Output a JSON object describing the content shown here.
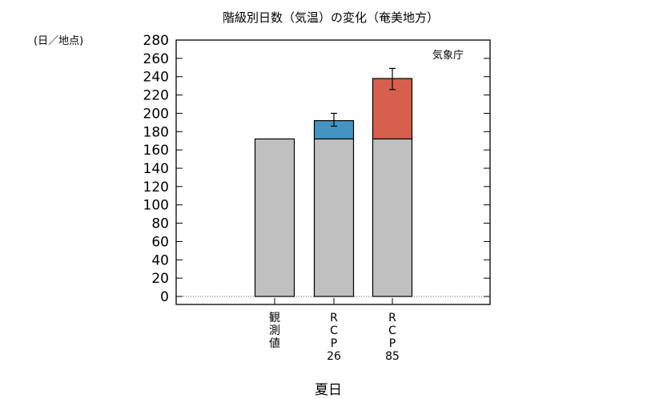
{
  "chart_data": {
    "type": "bar",
    "title": "階級別日数（気温）の変化（奄美地方）",
    "ylabel": "(日／地点)",
    "xlabel": "夏日",
    "credit": "気象庁",
    "ylim": [
      0,
      280
    ],
    "yticks": [
      0,
      20,
      40,
      60,
      80,
      100,
      120,
      140,
      160,
      180,
      200,
      220,
      240,
      260,
      280
    ],
    "categories": [
      [
        "観",
        "測",
        "値"
      ],
      [
        "R",
        "C",
        "P",
        "26"
      ],
      [
        "R",
        "C",
        "P",
        "85"
      ]
    ],
    "series": [
      {
        "values": [
          172,
          172,
          172
        ],
        "color": "#c0c0c0"
      },
      {
        "values": [
          0,
          20,
          66
        ],
        "colors": [
          "#c0c0c0",
          "#4393c3",
          "#d6604d"
        ]
      }
    ],
    "error_bars": [
      null,
      [
        186,
        200
      ],
      [
        226,
        249
      ]
    ],
    "grid": false
  }
}
